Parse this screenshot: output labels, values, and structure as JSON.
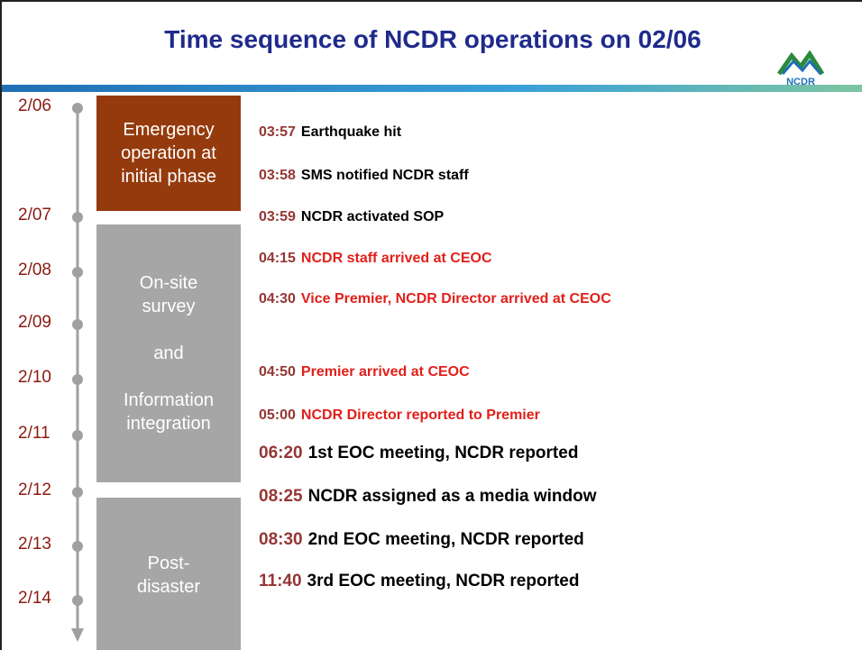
{
  "header": {
    "title": "Time sequence of NCDR operations on 02/06",
    "logo": "NCDR"
  },
  "dates": [
    "2/06",
    "2/07",
    "2/08",
    "2/09",
    "2/10",
    "2/11",
    "2/12",
    "2/13",
    "2/14"
  ],
  "phases": [
    {
      "lines": [
        "Emergency",
        "operation at",
        "initial phase"
      ],
      "color": "#953a0c"
    },
    {
      "lines": [
        "On-site",
        "survey",
        "and",
        "Information",
        "integration"
      ],
      "color": "#a6a6a6"
    },
    {
      "lines": [
        "Post-",
        "disaster"
      ],
      "color": "#a6a6a6"
    }
  ],
  "events": [
    {
      "time": "03:57",
      "text": "Earthquake hit",
      "color": "#000000"
    },
    {
      "time": "03:58",
      "text": "SMS notified NCDR staff",
      "color": "#000000"
    },
    {
      "time": "03:59",
      "text": "NCDR activated SOP",
      "color": "#000000"
    },
    {
      "time": "04:15",
      "text": "NCDR staff arrived at CEOC",
      "color": "#e0201b"
    },
    {
      "time": "04:30",
      "text": "Vice Premier, NCDR Director arrived at CEOC",
      "color": "#e0201b"
    },
    {
      "time": "04:50",
      "text": "Premier arrived at CEOC",
      "color": "#e0201b"
    },
    {
      "time": "05:00",
      "text": "NCDR Director reported to Premier",
      "color": "#e0201b"
    },
    {
      "time": "06:20",
      "text": "1st EOC meeting, NCDR reported",
      "color": "#000000"
    },
    {
      "time": "08:25",
      "text": "NCDR assigned as a media window",
      "color": "#000000"
    },
    {
      "time": "08:30",
      "text": "2nd EOC meeting, NCDR reported",
      "color": "#000000"
    },
    {
      "time": "11:40",
      "text": "3rd EOC meeting, NCDR reported",
      "color": "#000000"
    }
  ]
}
